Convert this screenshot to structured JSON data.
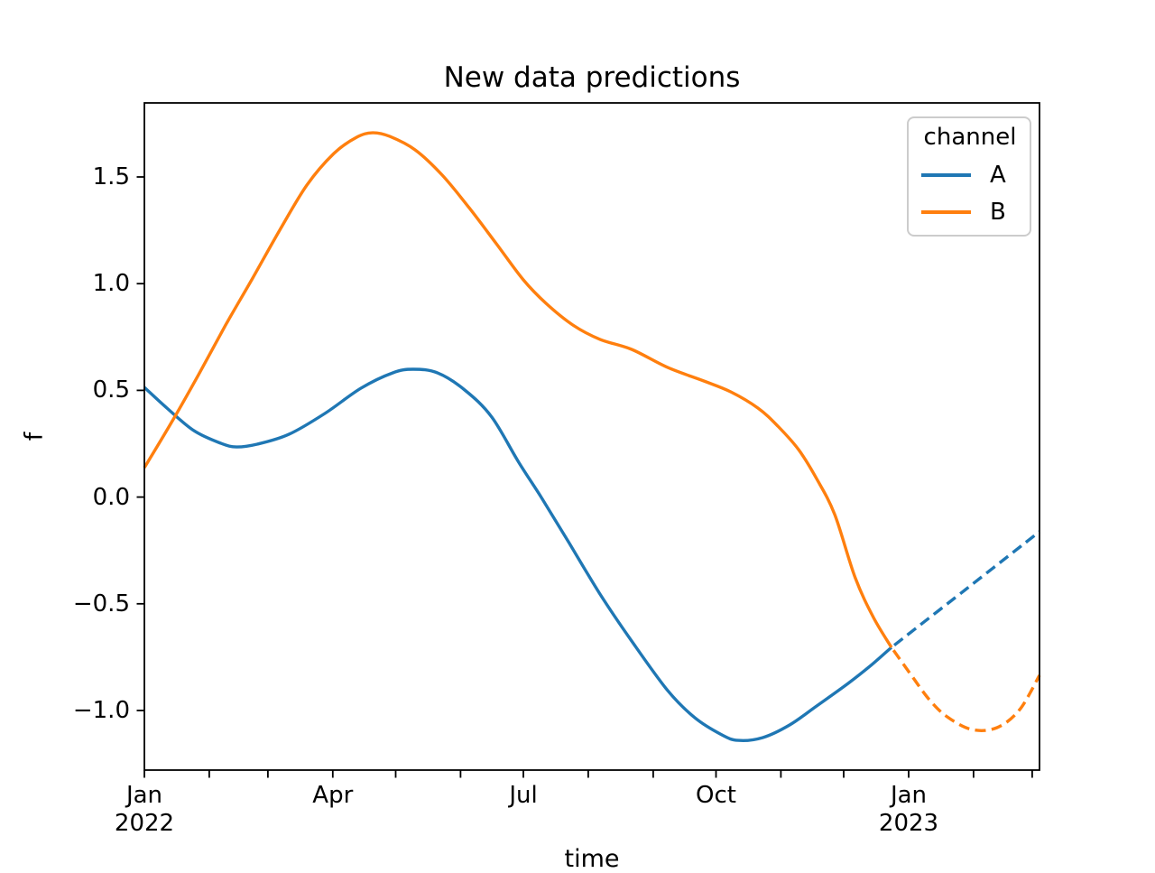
{
  "title": "New data predictions",
  "xlabel": "time",
  "ylabel": "f",
  "legend": {
    "title": "channel",
    "entries": [
      {
        "label": "A",
        "color": "#1f77b4",
        "style": "solid"
      },
      {
        "label": "B",
        "color": "#ff7f0e",
        "style": "solid"
      }
    ]
  },
  "colors": {
    "series_a": "#1f77b4",
    "series_b": "#ff7f0e",
    "spine": "#000000",
    "legend_border": "#cccccc"
  },
  "chart_data": {
    "type": "line",
    "title": "New data predictions",
    "xlabel": "time",
    "ylabel": "f",
    "grid": false,
    "legend_position": "upper right",
    "x_axis": {
      "unit": "days since 2022-01-01",
      "range": [
        0,
        427.5
      ],
      "tick_days": [
        0,
        31,
        59,
        90,
        120,
        151,
        181,
        212,
        243,
        273,
        304,
        334,
        365,
        396,
        424
      ],
      "labeled_ticks": [
        {
          "day": 0,
          "line1": "Jan",
          "line2": "2022"
        },
        {
          "day": 90,
          "line1": "Apr",
          "line2": ""
        },
        {
          "day": 181,
          "line1": "Jul",
          "line2": ""
        },
        {
          "day": 273,
          "line1": "Oct",
          "line2": ""
        },
        {
          "day": 365,
          "line1": "Jan",
          "line2": "2023"
        }
      ]
    },
    "y_axis": {
      "range": [
        -1.279,
        1.847
      ],
      "ticks": [
        1.5,
        1.0,
        0.5,
        0.0,
        -0.5,
        -1.0
      ],
      "tick_labels": [
        "1.5",
        "1.0",
        "0.5",
        "0.0",
        "−0.5",
        "−1.0"
      ]
    },
    "series": [
      {
        "name": "A",
        "channel": "A",
        "color": "#1f77b4",
        "style": "solid",
        "points": [
          [
            0,
            0.514
          ],
          [
            10.8,
            0.417
          ],
          [
            23.7,
            0.311
          ],
          [
            36.6,
            0.252
          ],
          [
            44,
            0.235
          ],
          [
            53.9,
            0.248
          ],
          [
            69,
            0.294
          ],
          [
            86.2,
            0.392
          ],
          [
            103.4,
            0.51
          ],
          [
            118.5,
            0.582
          ],
          [
            128.4,
            0.599
          ],
          [
            140,
            0.582
          ],
          [
            153,
            0.502
          ],
          [
            165.9,
            0.375
          ],
          [
            178.8,
            0.163
          ],
          [
            189.6,
            -0.002
          ],
          [
            202.5,
            -0.209
          ],
          [
            217.6,
            -0.454
          ],
          [
            232.7,
            -0.674
          ],
          [
            250,
            -0.907
          ],
          [
            262.9,
            -1.034
          ],
          [
            275.8,
            -1.114
          ],
          [
            283.6,
            -1.14
          ],
          [
            295.2,
            -1.127
          ],
          [
            308.1,
            -1.068
          ],
          [
            321,
            -0.979
          ],
          [
            336.1,
            -0.873
          ],
          [
            346.9,
            -0.789
          ],
          [
            356.8,
            -0.704
          ]
        ]
      },
      {
        "name": "A forecast",
        "channel": "A",
        "color": "#1f77b4",
        "style": "dashed",
        "points": [
          [
            356.8,
            -0.704
          ],
          [
            392.2,
            -0.433
          ],
          [
            427.5,
            -0.162
          ]
        ]
      },
      {
        "name": "B",
        "channel": "B",
        "color": "#ff7f0e",
        "style": "solid",
        "points": [
          [
            0,
            0.138
          ],
          [
            12.9,
            0.349
          ],
          [
            25.9,
            0.574
          ],
          [
            38.8,
            0.806
          ],
          [
            51.7,
            1.026
          ],
          [
            64.6,
            1.25
          ],
          [
            77.6,
            1.462
          ],
          [
            90.5,
            1.61
          ],
          [
            101.3,
            1.686
          ],
          [
            109,
            1.707
          ],
          [
            117.2,
            1.69
          ],
          [
            129.3,
            1.627
          ],
          [
            142.2,
            1.509
          ],
          [
            155.1,
            1.356
          ],
          [
            168.1,
            1.187
          ],
          [
            181,
            1.018
          ],
          [
            191.8,
            0.908
          ],
          [
            204.7,
            0.806
          ],
          [
            217.6,
            0.739
          ],
          [
            232.7,
            0.692
          ],
          [
            250,
            0.607
          ],
          [
            267.2,
            0.544
          ],
          [
            280.1,
            0.493
          ],
          [
            293.1,
            0.417
          ],
          [
            302.5,
            0.333
          ],
          [
            312.4,
            0.223
          ],
          [
            321,
            0.087
          ],
          [
            329.7,
            -0.082
          ],
          [
            339.5,
            -0.378
          ],
          [
            348.2,
            -0.564
          ],
          [
            356.8,
            -0.704
          ]
        ]
      },
      {
        "name": "B forecast",
        "channel": "B",
        "color": "#ff7f0e",
        "style": "dashed",
        "points": [
          [
            356.8,
            -0.704
          ],
          [
            366.3,
            -0.835
          ],
          [
            374.9,
            -0.949
          ],
          [
            383.5,
            -1.03
          ],
          [
            395.2,
            -1.089
          ],
          [
            407.2,
            -1.08
          ],
          [
            418,
            -0.996
          ],
          [
            427.5,
            -0.835
          ]
        ]
      }
    ],
    "legend": {
      "title": "channel",
      "entries": [
        "A",
        "B"
      ]
    }
  }
}
